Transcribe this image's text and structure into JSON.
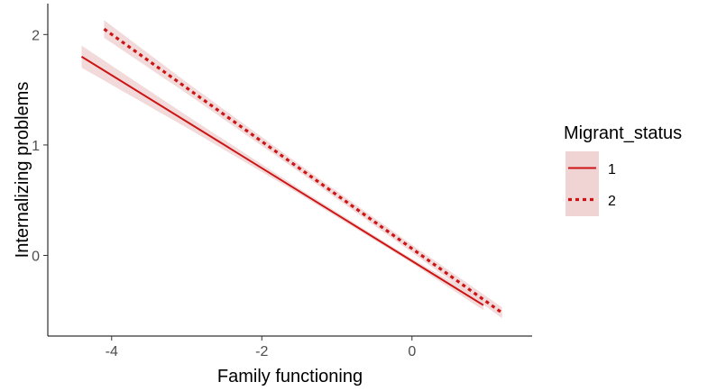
{
  "chart_data": {
    "type": "line",
    "title": "",
    "xlabel": "Family functioning",
    "ylabel": "Internalizing problems",
    "xlim": [
      -4.85,
      1.6
    ],
    "ylim": [
      -0.73,
      2.28
    ],
    "x_ticks": [
      -4,
      -2,
      0
    ],
    "y_ticks": [
      0,
      1,
      2
    ],
    "x_tick_labels": [
      "-4",
      "-2",
      "0"
    ],
    "y_tick_labels": [
      "0",
      "1",
      "2"
    ],
    "grid": false,
    "legend": {
      "title": "Migrant_status",
      "position": "right"
    },
    "series": [
      {
        "name": "1",
        "style": "solid",
        "color": "#cc1414",
        "band_color": "#f0d4d4",
        "x": [
          -4.4,
          0.95
        ],
        "y": [
          1.8,
          -0.45
        ],
        "band_halfwidth_x": [
          -4.4,
          -3.0,
          -1.5,
          0.0,
          0.95
        ],
        "band_halfwidth": [
          0.1,
          0.055,
          0.025,
          0.02,
          0.045
        ]
      },
      {
        "name": "2",
        "style": "dashed",
        "color": "#cc1414",
        "band_color": "#f0d4d4",
        "x": [
          -4.1,
          1.2
        ],
        "y": [
          2.05,
          -0.52
        ],
        "band_halfwidth_x": [
          -4.1,
          -3.0,
          -1.5,
          0.0,
          1.2
        ],
        "band_halfwidth": [
          0.08,
          0.05,
          0.035,
          0.035,
          0.05
        ]
      }
    ]
  }
}
